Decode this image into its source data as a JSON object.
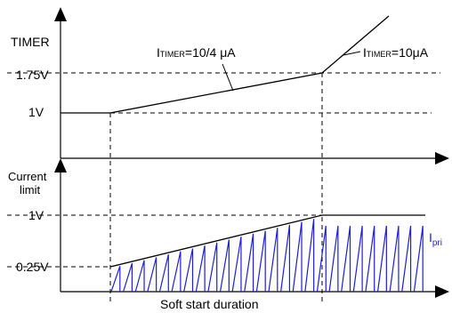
{
  "colors": {
    "ink": "#000000",
    "ipri": "#1f1fd6"
  },
  "top_panel": {
    "axis_label": "TIMER",
    "level_high": "1.75V",
    "level_low": "1V",
    "slope_label": {
      "main": "I",
      "sub": "TIMER",
      "value": "=10/4 μA"
    },
    "steep_label": {
      "main": "I",
      "sub": "TIMER",
      "value": "=10μA"
    }
  },
  "bottom_panel": {
    "axis_label_line1": "Current",
    "axis_label_line2": "limit",
    "level_high": "1V",
    "level_low": "0.25V",
    "waveform_label": {
      "main": "I",
      "sub": "pri"
    },
    "duration_label": "Soft start duration",
    "pulse_count": 26,
    "ramp_start_fraction": 0.25,
    "ramp_end_fraction": 1.0
  }
}
